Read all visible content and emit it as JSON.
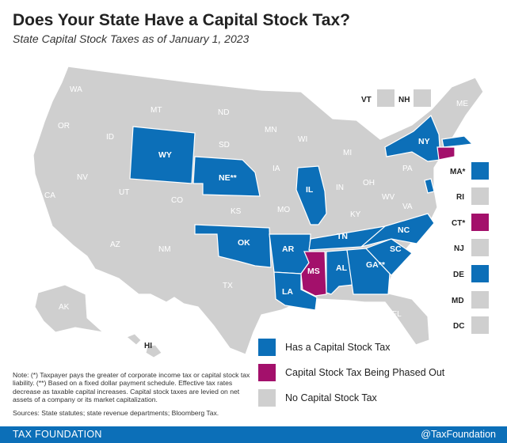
{
  "header": {
    "title": "Does Your State Have a Capital Stock Tax?",
    "subtitle": "State Capital Stock Taxes as of January 1, 2023"
  },
  "colors": {
    "has_tax": "#0c6fb8",
    "phased_out": "#a3106b",
    "none": "#cfcfcf",
    "footer_bg": "#0c6fb8"
  },
  "legend": {
    "has_tax": "Has a Capital Stock Tax",
    "phased_out": "Capital Stock Tax Being Phased Out",
    "none": "No Capital Stock Tax"
  },
  "states": {
    "WA": "WA",
    "OR": "OR",
    "CA": "CA",
    "ID": "ID",
    "NV": "NV",
    "MT": "MT",
    "WY": "WY",
    "UT": "UT",
    "AZ": "AZ",
    "CO": "CO",
    "NM": "NM",
    "ND": "ND",
    "SD": "SD",
    "NE": "NE**",
    "KS": "KS",
    "OK": "OK",
    "TX": "TX",
    "MN": "MN",
    "IA": "IA",
    "MO": "MO",
    "AR": "AR",
    "LA": "LA",
    "WI": "WI",
    "IL": "IL",
    "MS": "MS",
    "MI": "MI",
    "IN": "IN",
    "KY": "KY",
    "TN": "TN",
    "AL": "AL",
    "OH": "OH",
    "WV": "WV",
    "VA": "VA",
    "NC": "NC",
    "SC": "SC",
    "GA": "GA**",
    "FL": "FL",
    "PA": "PA",
    "NY": "NY",
    "ME": "ME",
    "AK": "AK",
    "HI": "HI"
  },
  "northeast": {
    "VT": "VT",
    "NH": "NH",
    "MA": "MA*",
    "RI": "RI",
    "CT": "CT*",
    "NJ": "NJ",
    "DE": "DE",
    "MD": "MD",
    "DC": "DC"
  },
  "status": {
    "has_tax": [
      "WY",
      "NE",
      "OK",
      "AR",
      "LA",
      "IL",
      "TN",
      "AL",
      "GA",
      "SC",
      "NC",
      "NY",
      "MA",
      "DE"
    ],
    "phased_out": [
      "MS",
      "CT"
    ],
    "none": [
      "WA",
      "OR",
      "CA",
      "ID",
      "NV",
      "MT",
      "UT",
      "AZ",
      "CO",
      "NM",
      "ND",
      "SD",
      "KS",
      "TX",
      "MN",
      "IA",
      "MO",
      "WI",
      "MI",
      "IN",
      "KY",
      "OH",
      "WV",
      "VA",
      "FL",
      "PA",
      "ME",
      "VT",
      "NH",
      "RI",
      "NJ",
      "MD",
      "DC",
      "AK",
      "HI"
    ]
  },
  "note": "Note: (*) Taxpayer pays the greater of corporate income tax or capital stock tax liability. (**) Based on a fixed dollar payment schedule. Effective tax rates decrease as taxable capital increases. Capital stock taxes are levied on net assets of a company or its market capitalization.",
  "sources": "Sources: State statutes; state revenue departments; Bloomberg Tax.",
  "footer": {
    "brand": "TAX FOUNDATION",
    "handle": "@TaxFoundation"
  }
}
